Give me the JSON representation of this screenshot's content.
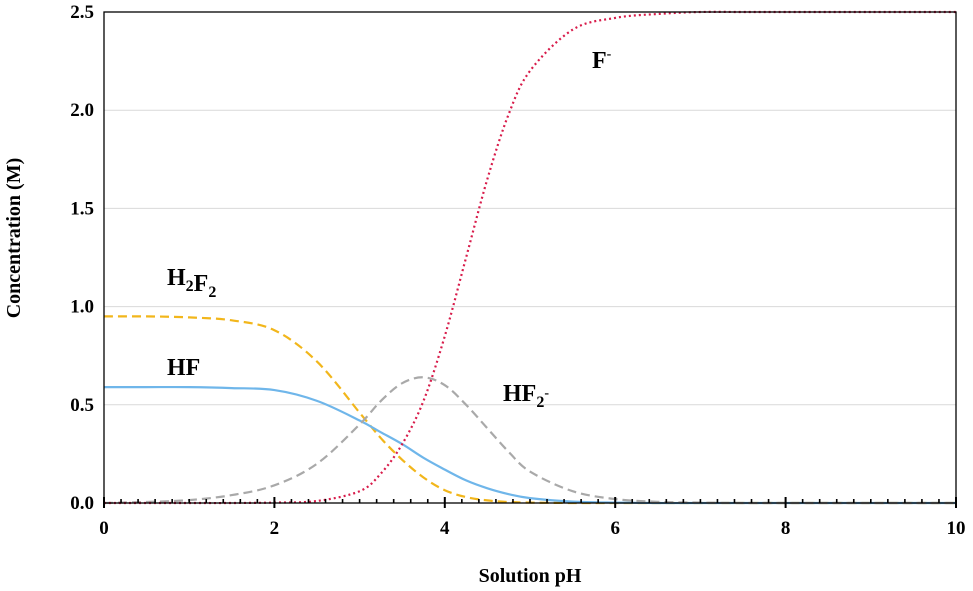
{
  "chart_data": {
    "type": "line",
    "title": "",
    "xlabel": "Solution pH",
    "ylabel": "Concentration (M)",
    "xlim": [
      0,
      10
    ],
    "ylim": [
      0,
      2.5
    ],
    "xticks": [
      "0",
      "2",
      "4",
      "6",
      "8",
      "10"
    ],
    "yticks": [
      "0.0",
      "0.5",
      "1.0",
      "1.5",
      "2.0",
      "2.5"
    ],
    "grid": "horizontal",
    "legend": "none",
    "x": [
      0,
      0.5,
      1,
      1.5,
      2,
      2.5,
      3,
      3.25,
      3.5,
      3.75,
      4,
      4.25,
      4.5,
      4.75,
      5,
      5.5,
      6,
      6.5,
      7,
      7.5,
      8,
      9,
      10
    ],
    "series": [
      {
        "name": "H2F2",
        "label_parts": [
          {
            "t": "H"
          },
          {
            "t": "2",
            "sub": true
          },
          {
            "t": "F"
          },
          {
            "t": "2",
            "sub": true
          }
        ],
        "color": "#F2B61B",
        "dash": "dashed",
        "values": [
          0.95,
          0.95,
          0.945,
          0.93,
          0.88,
          0.72,
          0.46,
          0.33,
          0.22,
          0.13,
          0.065,
          0.03,
          0.013,
          0.005,
          0.002,
          0.0,
          0.0,
          0.0,
          0.0,
          0.0,
          0.0,
          0.0,
          0.0
        ]
      },
      {
        "name": "HF",
        "label_parts": [
          {
            "t": "HF"
          }
        ],
        "color": "#6FB6EA",
        "dash": "solid",
        "values": [
          0.59,
          0.59,
          0.59,
          0.585,
          0.575,
          0.52,
          0.42,
          0.36,
          0.3,
          0.23,
          0.17,
          0.115,
          0.075,
          0.045,
          0.025,
          0.007,
          0.002,
          0.0,
          0.0,
          0.0,
          0.0,
          0.0,
          0.0
        ]
      },
      {
        "name": "HF2-",
        "label_parts": [
          {
            "t": "HF"
          },
          {
            "t": "2",
            "sub": true
          },
          {
            "t": "-",
            "sup": true
          }
        ],
        "color": "#A9A9A9",
        "dash": "dashed",
        "values": [
          0.0,
          0.005,
          0.015,
          0.04,
          0.09,
          0.2,
          0.4,
          0.52,
          0.61,
          0.64,
          0.6,
          0.5,
          0.38,
          0.26,
          0.16,
          0.06,
          0.02,
          0.006,
          0.002,
          0.0,
          0.0,
          0.0,
          0.0
        ]
      },
      {
        "name": "F-",
        "label_parts": [
          {
            "t": "F"
          },
          {
            "t": "-",
            "sup": true
          }
        ],
        "color": "#D81B4A",
        "dash": "dotted",
        "values": [
          0.0,
          0.0,
          0.0,
          0.0,
          0.002,
          0.01,
          0.06,
          0.15,
          0.3,
          0.52,
          0.85,
          1.25,
          1.65,
          1.98,
          2.2,
          2.41,
          2.47,
          2.49,
          2.5,
          2.5,
          2.5,
          2.5,
          2.5
        ]
      }
    ]
  }
}
